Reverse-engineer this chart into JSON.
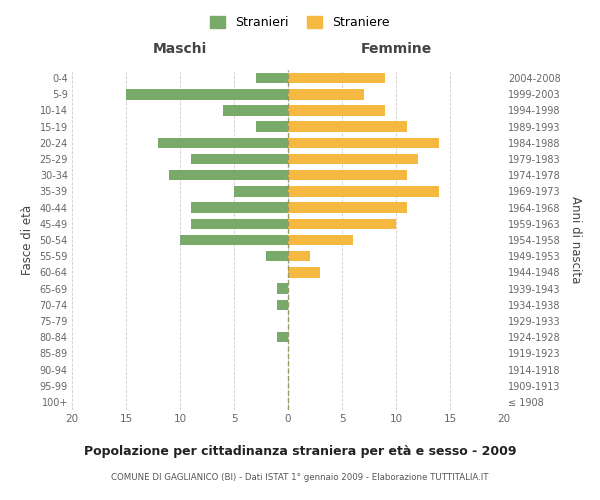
{
  "age_groups": [
    "100+",
    "95-99",
    "90-94",
    "85-89",
    "80-84",
    "75-79",
    "70-74",
    "65-69",
    "60-64",
    "55-59",
    "50-54",
    "45-49",
    "40-44",
    "35-39",
    "30-34",
    "25-29",
    "20-24",
    "15-19",
    "10-14",
    "5-9",
    "0-4"
  ],
  "birth_years": [
    "≤ 1908",
    "1909-1913",
    "1914-1918",
    "1919-1923",
    "1924-1928",
    "1929-1933",
    "1934-1938",
    "1939-1943",
    "1944-1948",
    "1949-1953",
    "1954-1958",
    "1959-1963",
    "1964-1968",
    "1969-1973",
    "1974-1978",
    "1979-1983",
    "1984-1988",
    "1989-1993",
    "1994-1998",
    "1999-2003",
    "2004-2008"
  ],
  "males": [
    0,
    0,
    0,
    0,
    1,
    0,
    1,
    1,
    0,
    2,
    10,
    9,
    9,
    5,
    11,
    9,
    12,
    3,
    6,
    15,
    3
  ],
  "females": [
    0,
    0,
    0,
    0,
    0,
    0,
    0,
    0,
    3,
    2,
    6,
    10,
    11,
    14,
    11,
    12,
    14,
    11,
    9,
    7,
    9
  ],
  "male_color": "#7aaa6a",
  "female_color": "#f5b942",
  "title": "Popolazione per cittadinanza straniera per età e sesso - 2009",
  "subtitle": "COMUNE DI GAGLIANICO (BI) - Dati ISTAT 1° gennaio 2009 - Elaborazione TUTTITALIA.IT",
  "xlabel_left": "Maschi",
  "xlabel_right": "Femmine",
  "ylabel_left": "Fasce di età",
  "ylabel_right": "Anni di nascita",
  "legend_stranieri": "Stranieri",
  "legend_straniere": "Straniere",
  "xlim": 20,
  "background_color": "#ffffff",
  "grid_color": "#cccccc"
}
